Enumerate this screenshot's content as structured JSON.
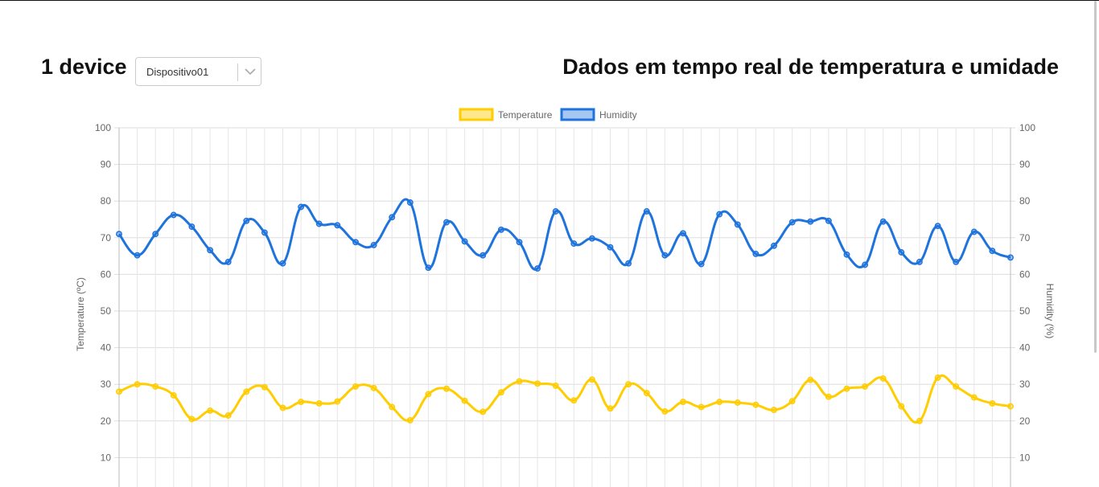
{
  "header": {
    "device_count_label": "1 device",
    "device_select": {
      "selected": "Dispositivo01"
    },
    "title": "Dados em tempo real de temperatura e umidade"
  },
  "chart_data": {
    "type": "line",
    "title": "",
    "legend": {
      "position": "top",
      "items": [
        "Temperature",
        "Humidity"
      ]
    },
    "grid": true,
    "y_left": {
      "label": "Temperature (ºC)",
      "range": [
        0,
        100
      ],
      "ticks": [
        100,
        90,
        80,
        70,
        60,
        50,
        40,
        30,
        20,
        10
      ]
    },
    "y_right": {
      "label": "Humidity (%)",
      "range": [
        0,
        100
      ],
      "ticks": [
        100,
        90,
        80,
        70,
        60,
        50,
        40,
        30,
        20,
        10
      ]
    },
    "series": [
      {
        "name": "Temperature",
        "axis": "left",
        "color": "#FFCD00",
        "fill": "rgba(255,205,0,0.45)",
        "values": [
          28,
          30,
          29.4,
          27,
          20.5,
          22.8,
          21.5,
          28,
          29.2,
          23.6,
          25.2,
          24.8,
          25.3,
          29.4,
          29,
          23.8,
          20.2,
          27.3,
          28.8,
          25.5,
          22.5,
          27.8,
          30.8,
          30.2,
          29.6,
          25.6,
          31.3,
          23.4,
          30,
          27.6,
          22.6,
          25.2,
          23.8,
          25.2,
          25,
          24.4,
          23,
          25.4,
          31.2,
          26.6,
          28.8,
          29.4,
          31.6,
          24,
          20,
          31.8,
          29.4,
          26.4,
          24.8,
          24
        ]
      },
      {
        "name": "Humidity",
        "axis": "right",
        "color": "#1E73DC",
        "fill": "rgba(30,115,220,0.4)",
        "values": [
          71,
          65.2,
          71,
          76.2,
          73,
          66.6,
          63.4,
          74.6,
          71.4,
          63,
          78.4,
          73.8,
          73.4,
          68.8,
          68,
          75.6,
          79.6,
          61.8,
          74.2,
          69,
          65.2,
          72.2,
          68.8,
          61.6,
          77.2,
          68.4,
          69.8,
          67.4,
          63,
          77.2,
          65.2,
          71.2,
          62.8,
          76.4,
          73.6,
          65.6,
          67.8,
          74.2,
          74.4,
          74.6,
          65.4,
          62.6,
          74.4,
          66,
          63.4,
          73.2,
          63.4,
          71.6,
          66.4,
          64.6
        ]
      }
    ]
  }
}
